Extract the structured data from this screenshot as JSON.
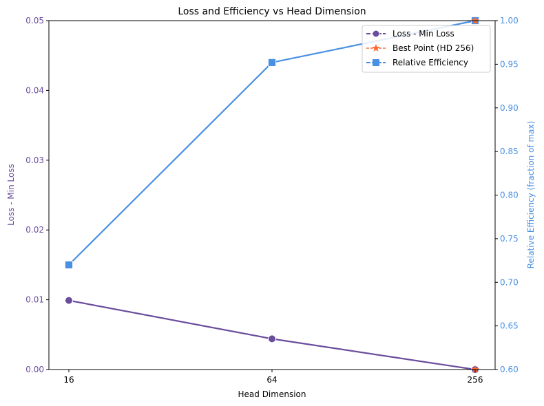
{
  "chart_data": {
    "type": "line",
    "title": "Loss and Efficiency vs Head Dimension",
    "xlabel": "Head Dimension",
    "ylabel_left": "Loss - Min Loss",
    "ylabel_right": "Relative Efficiency (fraction of max)",
    "categories": [
      "16",
      "64",
      "256"
    ],
    "ylim_left": [
      0,
      0.05
    ],
    "ylim_right": [
      0.6,
      1.0
    ],
    "yticks_left": [
      "0.00",
      "0.01",
      "0.02",
      "0.03",
      "0.04",
      "0.05"
    ],
    "yticks_right": [
      "0.60",
      "0.65",
      "0.70",
      "0.75",
      "0.80",
      "0.85",
      "0.90",
      "0.95",
      "1.00"
    ],
    "series": [
      {
        "name": "Loss - Min Loss",
        "axis": "left",
        "values": [
          0.0099,
          0.0044,
          0.0
        ],
        "color": "#6a4c9c",
        "marker": "circle"
      },
      {
        "name": "Relative Efficiency",
        "axis": "right",
        "values": [
          0.72,
          0.952,
          1.0
        ],
        "color": "#4a90e2",
        "marker": "square"
      }
    ],
    "best_point": {
      "name": "Best Point (HD 256)",
      "category": "256",
      "left_value": 0.0,
      "right_value": 1.0,
      "color": "#ff6b35",
      "marker": "star"
    },
    "legend": {
      "position": "top-right",
      "entries": [
        "Loss - Min Loss",
        "Best Point (HD 256)",
        "Relative Efficiency"
      ]
    },
    "grid": false
  }
}
